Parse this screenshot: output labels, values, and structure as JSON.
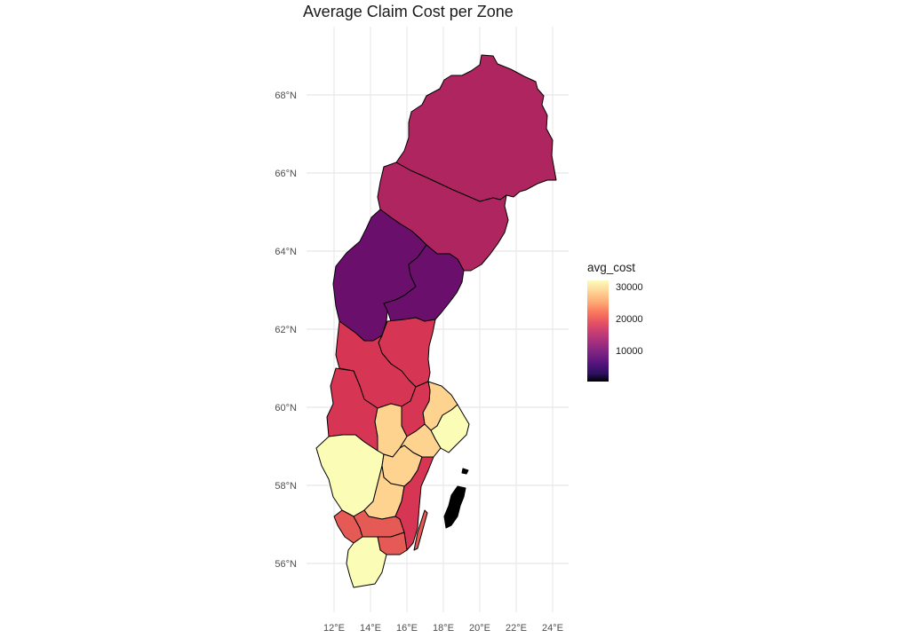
{
  "title": "Average Claim Cost per Zone",
  "axes": {
    "x_ticks": [
      "12°E",
      "14°E",
      "16°E",
      "18°E",
      "20°E",
      "22°E",
      "24°E"
    ],
    "y_ticks": [
      "68°N",
      "66°N",
      "64°N",
      "62°N",
      "60°N",
      "58°N",
      "56°N"
    ]
  },
  "legend": {
    "title": "avg_cost",
    "labels": [
      "30000",
      "20000",
      "10000"
    ],
    "palette": [
      "#fcfdbf",
      "#fecf92",
      "#f8765c",
      "#e55064",
      "#c43c75",
      "#7b2382",
      "#2c115f",
      "#000004"
    ]
  },
  "colors": {
    "north": "#ae2560",
    "central_dark": "#6b0f6c",
    "red": "#d63654",
    "coral": "#e55a55",
    "pale_orange": "#fed28f",
    "pale_yellow": "#fbfcb6",
    "island": "#000000",
    "grid": "#e8e8e8"
  }
}
